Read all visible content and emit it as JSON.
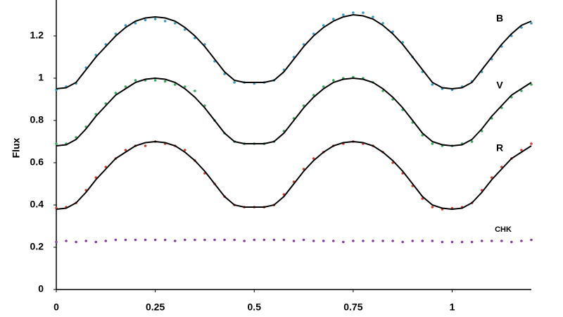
{
  "chart_data": {
    "type": "line",
    "y_label": "Flux",
    "x": [
      0,
      0.025,
      0.05,
      0.075,
      0.1,
      0.125,
      0.15,
      0.175,
      0.2,
      0.225,
      0.25,
      0.275,
      0.3,
      0.325,
      0.35,
      0.375,
      0.4,
      0.425,
      0.45,
      0.475,
      0.5,
      0.525,
      0.55,
      0.575,
      0.6,
      0.625,
      0.65,
      0.675,
      0.7,
      0.725,
      0.75,
      0.775,
      0.8,
      0.825,
      0.85,
      0.875,
      0.9,
      0.925,
      0.95,
      0.975,
      1,
      1.025,
      1.05,
      1.075,
      1.1,
      1.125,
      1.15,
      1.175,
      1.2
    ],
    "xlim": [
      0,
      1.2
    ],
    "xticks": [
      0,
      0.25,
      0.5,
      0.75,
      1
    ],
    "ylim": [
      0,
      1.37
    ],
    "yticks": [
      0,
      0.2,
      0.4,
      0.6,
      0.8,
      1,
      1.2
    ],
    "series": [
      {
        "name": "B",
        "color": "#3a9bc0",
        "style": "dots",
        "values": [
          0.945,
          0.96,
          0.975,
          1.05,
          1.11,
          1.16,
          1.21,
          1.25,
          1.26,
          1.275,
          1.28,
          1.27,
          1.26,
          1.23,
          1.19,
          1.16,
          1.08,
          1.02,
          0.98,
          0.98,
          0.975,
          0.98,
          0.99,
          1.04,
          1.1,
          1.16,
          1.21,
          1.25,
          1.28,
          1.3,
          1.31,
          1.31,
          1.29,
          1.26,
          1.22,
          1.17,
          1.1,
          1.03,
          0.97,
          0.95,
          0.945,
          0.96,
          0.985,
          1.03,
          1.09,
          1.15,
          1.2,
          1.24,
          1.26
        ]
      },
      {
        "color": "#000000",
        "style": "line",
        "values": [
          0.95,
          0.955,
          0.98,
          1.04,
          1.1,
          1.15,
          1.2,
          1.24,
          1.27,
          1.285,
          1.29,
          1.285,
          1.27,
          1.24,
          1.2,
          1.15,
          1.09,
          1.03,
          0.99,
          0.98,
          0.98,
          0.98,
          0.99,
          1.03,
          1.09,
          1.15,
          1.2,
          1.24,
          1.27,
          1.29,
          1.3,
          1.295,
          1.28,
          1.25,
          1.21,
          1.16,
          1.1,
          1.04,
          0.98,
          0.955,
          0.95,
          0.955,
          0.98,
          1.04,
          1.1,
          1.16,
          1.21,
          1.25,
          1.27
        ]
      },
      {
        "name": "V",
        "color": "#3aa860",
        "style": "dots",
        "values": [
          0.69,
          0.69,
          0.72,
          0.77,
          0.83,
          0.88,
          0.93,
          0.96,
          0.99,
          0.99,
          0.99,
          0.985,
          0.97,
          0.96,
          0.94,
          0.87,
          0.8,
          0.74,
          0.7,
          0.69,
          0.69,
          0.69,
          0.7,
          0.75,
          0.81,
          0.87,
          0.92,
          0.96,
          0.99,
          1,
          1.005,
          1,
          0.98,
          0.94,
          0.9,
          0.85,
          0.79,
          0.73,
          0.69,
          0.68,
          0.68,
          0.69,
          0.7,
          0.75,
          0.81,
          0.86,
          0.91,
          0.94,
          0.97
        ]
      },
      {
        "color": "#000000",
        "style": "line",
        "values": [
          0.68,
          0.685,
          0.71,
          0.76,
          0.82,
          0.87,
          0.92,
          0.95,
          0.98,
          0.995,
          1,
          0.995,
          0.98,
          0.95,
          0.91,
          0.86,
          0.8,
          0.74,
          0.7,
          0.69,
          0.69,
          0.69,
          0.7,
          0.74,
          0.8,
          0.86,
          0.91,
          0.95,
          0.98,
          0.995,
          1,
          0.995,
          0.98,
          0.95,
          0.91,
          0.86,
          0.8,
          0.74,
          0.7,
          0.685,
          0.68,
          0.685,
          0.71,
          0.76,
          0.82,
          0.87,
          0.92,
          0.95,
          0.98
        ]
      },
      {
        "name": "R",
        "color": "#d04030",
        "style": "dots",
        "values": [
          0.385,
          0.39,
          0.41,
          0.47,
          0.53,
          0.58,
          0.62,
          0.66,
          0.68,
          0.68,
          0.7,
          0.69,
          0.68,
          0.66,
          0.61,
          0.55,
          0.5,
          0.44,
          0.4,
          0.39,
          0.39,
          0.39,
          0.4,
          0.45,
          0.51,
          0.57,
          0.62,
          0.65,
          0.68,
          0.69,
          0.7,
          0.69,
          0.68,
          0.65,
          0.6,
          0.55,
          0.49,
          0.43,
          0.39,
          0.38,
          0.385,
          0.39,
          0.41,
          0.47,
          0.53,
          0.58,
          0.62,
          0.66,
          0.69
        ]
      },
      {
        "color": "#000000",
        "style": "line",
        "values": [
          0.38,
          0.385,
          0.41,
          0.46,
          0.52,
          0.57,
          0.62,
          0.65,
          0.68,
          0.695,
          0.7,
          0.695,
          0.68,
          0.65,
          0.61,
          0.56,
          0.5,
          0.44,
          0.4,
          0.39,
          0.39,
          0.39,
          0.4,
          0.44,
          0.5,
          0.56,
          0.61,
          0.65,
          0.68,
          0.695,
          0.7,
          0.695,
          0.68,
          0.65,
          0.61,
          0.56,
          0.5,
          0.44,
          0.4,
          0.385,
          0.38,
          0.385,
          0.41,
          0.46,
          0.52,
          0.57,
          0.62,
          0.65,
          0.68
        ]
      },
      {
        "name": "CHK",
        "color": "#8040a0",
        "style": "dots",
        "values": [
          0.225,
          0.23,
          0.225,
          0.23,
          0.225,
          0.23,
          0.235,
          0.235,
          0.235,
          0.235,
          0.235,
          0.235,
          0.23,
          0.235,
          0.235,
          0.235,
          0.235,
          0.235,
          0.235,
          0.23,
          0.235,
          0.235,
          0.235,
          0.235,
          0.23,
          0.235,
          0.23,
          0.23,
          0.23,
          0.225,
          0.23,
          0.23,
          0.23,
          0.23,
          0.23,
          0.225,
          0.23,
          0.23,
          0.23,
          0.225,
          0.225,
          0.225,
          0.225,
          0.23,
          0.23,
          0.23,
          0.225,
          0.23,
          0.235
        ]
      }
    ]
  }
}
